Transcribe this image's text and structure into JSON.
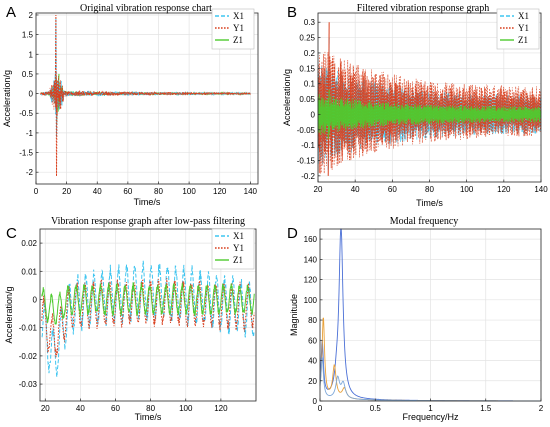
{
  "colors": {
    "X1": "#3fc5f0",
    "Y1": "#d9401f",
    "Z1": "#4ecb2f",
    "mode1": "#4a6fd6",
    "mode2": "#e8a13a",
    "mode3": "#7ea8d9"
  },
  "chart_data": [
    {
      "id": "A",
      "panel_letter": "A",
      "type": "line",
      "title": "Original vibration response chart",
      "xlabel": "Time/s",
      "ylabel": "Acceleration/g",
      "xlim": [
        0,
        145
      ],
      "ylim": [
        -2.3,
        2.05
      ],
      "xticks": [
        0,
        20,
        40,
        60,
        80,
        100,
        120,
        140
      ],
      "yticks": [
        -2,
        -1.5,
        -1,
        -0.5,
        0,
        0.5,
        1,
        1.5,
        2
      ],
      "ytick_labels": [
        "-2",
        "-1.5",
        "-1",
        "-0.5",
        "0",
        "0.5",
        "1",
        "1.5",
        "2"
      ],
      "grid": true,
      "legend": "top-right",
      "series": [
        {
          "name": "X1",
          "style": "dash",
          "peak": [
            13,
            1.9
          ],
          "trough": [
            13,
            -1.1
          ]
        },
        {
          "name": "Y1",
          "style": "dot",
          "peak": [
            13,
            2.0
          ],
          "trough": [
            13,
            -2.1
          ]
        },
        {
          "name": "Z1",
          "style": "solid",
          "peak": [
            15,
            0.5
          ],
          "trough": [
            13,
            -0.8
          ]
        }
      ]
    },
    {
      "id": "B",
      "panel_letter": "B",
      "type": "line",
      "title": "Filtered vibration response graph",
      "xlabel": "Time/s",
      "ylabel": "Acceleration/g",
      "xlim": [
        20,
        140
      ],
      "ylim": [
        -0.22,
        0.33
      ],
      "xticks": [
        20,
        40,
        60,
        80,
        100,
        120,
        140
      ],
      "yticks": [
        -0.2,
        -0.15,
        -0.1,
        -0.05,
        0,
        0.05,
        0.1,
        0.15,
        0.2,
        0.25,
        0.3
      ],
      "ytick_labels": [
        "-0.2",
        "-0.15",
        "-0.1",
        "-0.05",
        "0",
        "0.05",
        "0.1",
        "0.15",
        "0.2",
        "0.25",
        "0.3"
      ],
      "grid": true,
      "legend": "top-right",
      "series": [
        {
          "name": "X1",
          "style": "dash",
          "max": 0.25,
          "min": -0.18
        },
        {
          "name": "Y1",
          "style": "dot",
          "max": 0.3,
          "min": -0.2
        },
        {
          "name": "Z1",
          "style": "solid",
          "max": 0.08,
          "min": -0.08
        }
      ]
    },
    {
      "id": "C",
      "panel_letter": "C",
      "type": "line",
      "title": "Vibration response graph after low-pass filtering",
      "xlabel": "Time/s",
      "ylabel": "Acceleration/g",
      "xlim": [
        17,
        140
      ],
      "ylim": [
        -0.036,
        0.025
      ],
      "xticks": [
        20,
        40,
        60,
        80,
        100,
        120
      ],
      "yticks": [
        -0.03,
        -0.02,
        -0.01,
        0,
        0.01,
        0.02
      ],
      "ytick_labels": [
        "-0.03",
        "-0.02",
        "-0.01",
        "0",
        "0.01",
        "0.02"
      ],
      "grid": true,
      "legend": "top-right",
      "series": [
        {
          "name": "X1",
          "style": "dash",
          "max": 0.016,
          "min": -0.029
        },
        {
          "name": "Y1",
          "style": "dot",
          "max": 0.01,
          "min": -0.021
        },
        {
          "name": "Z1",
          "style": "solid",
          "max": 0.008,
          "min": -0.009
        }
      ]
    },
    {
      "id": "D",
      "panel_letter": "D",
      "type": "line",
      "title": "Modal frequency",
      "xlabel": "Frequency/Hz",
      "ylabel": "Magnitude",
      "xlim": [
        0,
        2
      ],
      "ylim": [
        0,
        170
      ],
      "xticks": [
        0,
        0.5,
        1,
        1.5,
        2
      ],
      "xtick_labels": [
        "0",
        "0.5",
        "1",
        "1.5",
        "2"
      ],
      "yticks": [
        0,
        20,
        40,
        60,
        80,
        100,
        120,
        140,
        160
      ],
      "grid": true,
      "series": [
        {
          "peaks": [
            [
              0.02,
              55
            ],
            [
              0.15,
              12
            ],
            [
              0.19,
              170
            ]
          ]
        },
        {
          "peaks": [
            [
              0.03,
              80
            ],
            [
              0.13,
              32
            ],
            [
              0.22,
              10
            ]
          ]
        },
        {
          "peaks": [
            [
              0.02,
              40
            ],
            [
              0.16,
              20
            ],
            [
              0.21,
              15
            ]
          ]
        }
      ]
    }
  ]
}
